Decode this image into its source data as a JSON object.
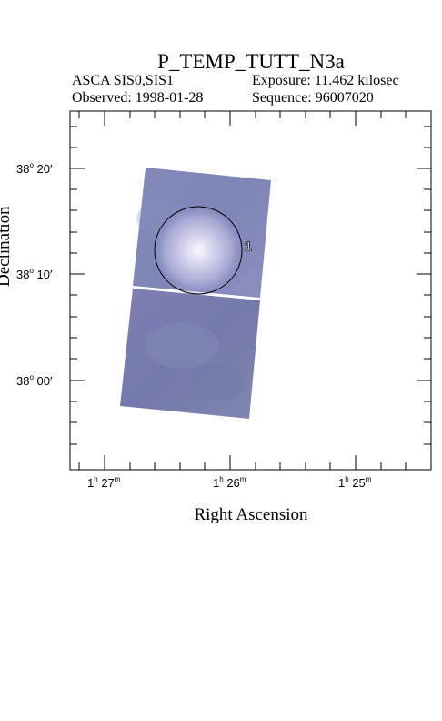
{
  "title": "P_TEMP_TUTT_N3a",
  "header": {
    "instrument": "ASCA SIS0,SIS1",
    "exposure": "Exposure: 11.462 kilosec",
    "observed": "Observed: 1998-01-28",
    "sequence": "Sequence: 96007020"
  },
  "axes": {
    "xlabel": "Right Ascension",
    "ylabel": "Declination",
    "x_ticks": [
      {
        "h": "1",
        "m": "27"
      },
      {
        "h": "1",
        "m": "26"
      },
      {
        "h": "1",
        "m": "25"
      }
    ],
    "y_ticks": [
      {
        "deg": "38",
        "min": "20"
      },
      {
        "deg": "38",
        "min": "10"
      },
      {
        "deg": "38",
        "min": "00"
      }
    ]
  },
  "source": {
    "label": "1"
  },
  "colors": {
    "image_fill": "#7a7fb2",
    "source_glow": "#e8e6f4",
    "frame": "#000000"
  }
}
